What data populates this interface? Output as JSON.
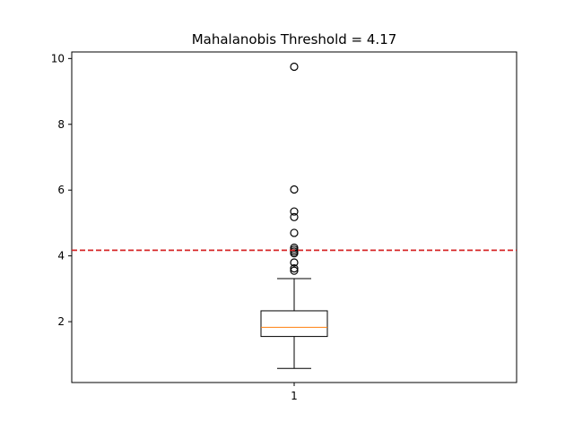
{
  "chart_data": {
    "type": "boxplot",
    "title": "Mahalanobis Threshold = 4.17",
    "xlabel": "",
    "ylabel": "",
    "categories": [
      "1"
    ],
    "ylim": [
      0.15,
      10.2
    ],
    "yticks": [
      2,
      4,
      6,
      8,
      10
    ],
    "grid": false,
    "box": {
      "whisker_low": 0.58,
      "q1": 1.55,
      "median": 1.83,
      "q3": 2.33,
      "whisker_high": 3.31
    },
    "outliers": [
      3.55,
      3.62,
      3.8,
      4.08,
      4.13,
      4.19,
      4.25,
      4.7,
      5.18,
      5.35,
      6.02,
      9.75
    ],
    "threshold": {
      "value": 4.17,
      "color": "#d62728",
      "style": "dashed"
    },
    "colors": {
      "box": "#000000",
      "median": "#ff7f0e",
      "outlier_edge": "#000000"
    }
  }
}
